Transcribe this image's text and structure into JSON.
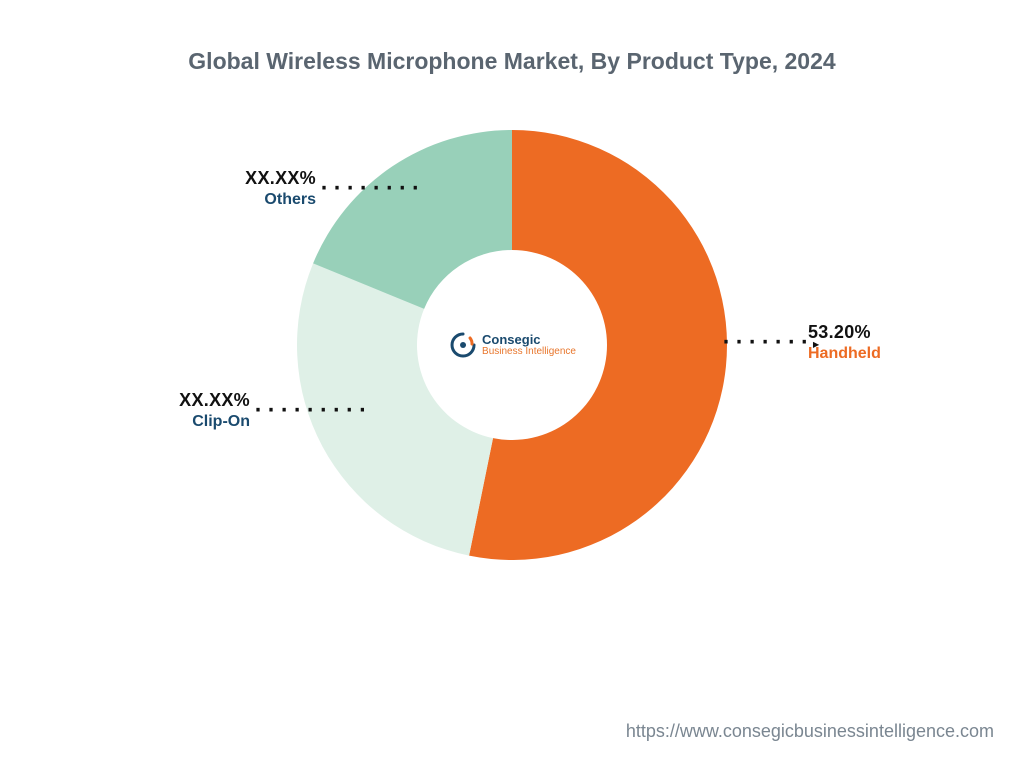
{
  "title": "Global Wireless Microphone Market, By Product Type, 2024",
  "chart": {
    "type": "donut",
    "outer_radius": 215,
    "inner_radius": 95,
    "background_color": "#ffffff",
    "segments": [
      {
        "name": "Handheld",
        "value": 53.2,
        "pct_label": "53.20%",
        "color": "#ed6b23",
        "label_color": "#ed6b23"
      },
      {
        "name": "Clip-On",
        "value": 28.0,
        "pct_label": "XX.XX%",
        "color": "#dff0e7",
        "label_color": "#1a4a6e"
      },
      {
        "name": "Others",
        "value": 18.8,
        "pct_label": "XX.XX%",
        "color": "#98d0b9",
        "label_color": "#1a4a6e"
      }
    ]
  },
  "logo": {
    "line1": "Consegic",
    "line2": "Business Intelligence"
  },
  "footer_url": "https://www.consegicbusinessintelligence.com"
}
